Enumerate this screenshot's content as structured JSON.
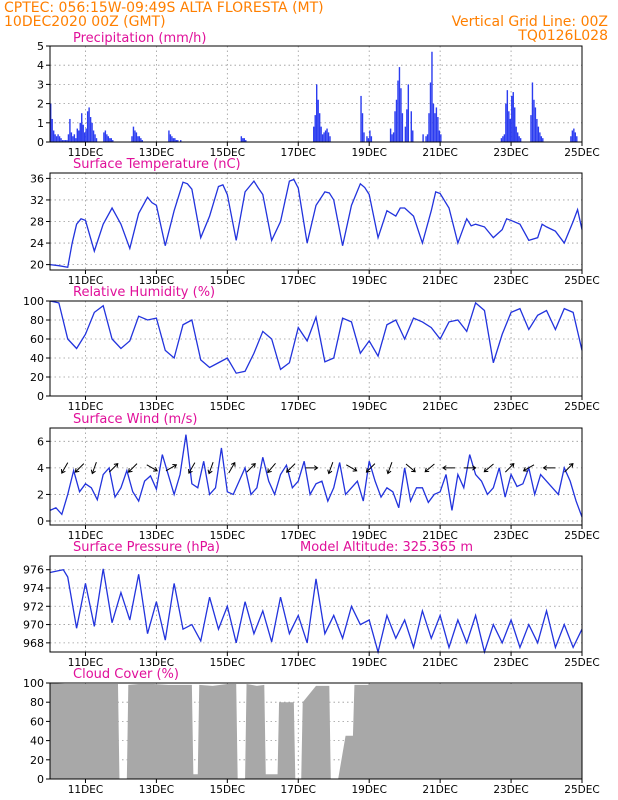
{
  "header": {
    "line1_left": "CPTEC:   056:15W-09:49S   ALTA FLORESTA (MT)",
    "line2_left": "10DEC2020 00Z (GMT)",
    "line1_right": "Vertical Grid Line: 00Z",
    "line2_right": "TQ0126L028",
    "color": "#ff7f00"
  },
  "colors": {
    "title": "#e0109a",
    "line": "#2233dd",
    "bar": "#2b3cf0",
    "cloud": "#a8a8a8"
  },
  "x_tick_labels": [
    "11DEC",
    "13DEC",
    "15DEC",
    "17DEC",
    "19DEC",
    "21DEC",
    "23DEC",
    "25DEC"
  ],
  "panels": {
    "precip": {
      "title": "Precipitation (mm/h)"
    },
    "temp": {
      "title": "Surface Temperature (nC)"
    },
    "rh": {
      "title": "Relative Humidity (%)"
    },
    "wind": {
      "title": "Surface Wind (m/s)"
    },
    "press": {
      "title": "Surface Pressure (hPa)",
      "extra": "Model Altitude: 325.365 m"
    },
    "cloud": {
      "title": "Cloud Cover (%)"
    }
  },
  "chart_data": [
    {
      "id": "precip",
      "type": "bar",
      "title": "Precipitation (mm/h)",
      "xlim": [
        0,
        360
      ],
      "ylim": [
        0,
        5
      ],
      "yticks": [
        0,
        1,
        2,
        3,
        4,
        5
      ],
      "xgrid": [
        24,
        72,
        120,
        168,
        216,
        264,
        312,
        360
      ],
      "grid": true,
      "vgrid": true,
      "x": [
        0,
        1,
        2,
        3,
        4,
        5,
        6,
        7,
        8,
        9,
        10,
        11,
        12,
        13,
        14,
        15,
        16,
        17,
        18,
        19,
        20,
        21,
        22,
        23,
        24,
        25,
        26,
        27,
        28,
        29,
        30,
        31,
        36,
        37,
        38,
        39,
        40,
        41,
        42,
        55,
        56,
        57,
        58,
        59,
        60,
        61,
        62,
        80,
        81,
        82,
        83,
        84,
        85,
        86,
        88,
        129,
        130,
        131,
        132,
        178,
        179,
        180,
        181,
        182,
        183,
        184,
        185,
        186,
        187,
        188,
        189,
        210,
        211,
        212,
        214,
        215,
        216,
        217,
        230,
        231,
        232,
        233,
        234,
        235,
        236,
        237,
        238,
        240,
        241,
        242,
        244,
        245,
        252,
        254,
        255,
        256,
        257,
        258,
        259,
        260,
        261,
        262,
        263,
        264,
        305,
        306,
        307,
        308,
        309,
        310,
        311,
        312,
        313,
        314,
        315,
        316,
        317,
        318,
        325,
        326,
        327,
        328,
        329,
        330,
        331,
        332,
        333,
        352,
        353,
        354,
        355,
        356
      ],
      "values": [
        2.0,
        1.2,
        0.6,
        0.4,
        0.3,
        0.4,
        0.3,
        0.2,
        0.1,
        0.1,
        0.1,
        0.1,
        0.4,
        1.2,
        0.5,
        0.3,
        0.4,
        0.2,
        0.7,
        0.6,
        1.0,
        1.5,
        0.9,
        0.5,
        0.7,
        1.6,
        1.8,
        1.3,
        1.0,
        0.6,
        0.4,
        0.2,
        0.5,
        0.6,
        0.4,
        0.3,
        0.2,
        0.2,
        0.1,
        0.3,
        0.8,
        0.6,
        0.5,
        0.3,
        0.3,
        0.2,
        0.1,
        0.6,
        0.4,
        0.3,
        0.2,
        0.2,
        0.1,
        0.1,
        0.1,
        0.3,
        0.2,
        0.2,
        0.1,
        0.8,
        1.4,
        3.0,
        2.2,
        1.5,
        0.8,
        0.4,
        0.5,
        0.6,
        0.7,
        0.5,
        0.3,
        2.4,
        1.5,
        0.5,
        0.3,
        0.2,
        0.6,
        0.3,
        0.7,
        0.4,
        0.5,
        1.6,
        2.2,
        3.2,
        3.9,
        2.8,
        1.5,
        0.8,
        1.7,
        3.0,
        1.6,
        0.6,
        0.4,
        0.3,
        0.4,
        1.5,
        3.1,
        4.7,
        2.0,
        1.5,
        1.8,
        1.3,
        0.6,
        0.4,
        0.2,
        0.3,
        0.4,
        2.0,
        2.7,
        1.6,
        1.2,
        2.4,
        2.6,
        1.8,
        0.8,
        0.5,
        0.3,
        0.2,
        1.4,
        3.1,
        2.2,
        1.8,
        1.2,
        0.8,
        0.5,
        0.3,
        0.2,
        0.3,
        0.6,
        0.7,
        0.5,
        0.3
      ]
    },
    {
      "id": "temp",
      "type": "line",
      "title": "Surface Temperature (nC)",
      "xlim": [
        0,
        360
      ],
      "ylim": [
        19,
        37
      ],
      "yticks": [
        20,
        24,
        28,
        32,
        36
      ],
      "xgrid": [
        24,
        72,
        120,
        168,
        216,
        264,
        312,
        360
      ],
      "grid": true,
      "vgrid": true,
      "x": [
        0,
        6,
        12,
        15,
        18,
        21,
        24,
        30,
        36,
        42,
        45,
        48,
        54,
        60,
        66,
        69,
        72,
        78,
        84,
        90,
        93,
        96,
        102,
        108,
        114,
        117,
        120,
        126,
        132,
        138,
        141,
        144,
        150,
        156,
        162,
        165,
        168,
        174,
        180,
        186,
        189,
        192,
        198,
        204,
        210,
        213,
        216,
        222,
        228,
        234,
        237,
        240,
        246,
        252,
        258,
        261,
        264,
        270,
        276,
        282,
        285,
        288,
        294,
        300,
        306,
        309,
        312,
        318,
        324,
        330,
        333,
        336,
        342,
        348,
        354,
        357,
        360
      ],
      "values": [
        20,
        19.8,
        19.5,
        24,
        27.5,
        28.5,
        28.2,
        22.5,
        27.5,
        30.5,
        29,
        27.5,
        23,
        29.5,
        32.5,
        31.5,
        31,
        23.5,
        30,
        35.3,
        35,
        34,
        25,
        29,
        34.5,
        34.8,
        33,
        24.5,
        33.5,
        35.5,
        34.2,
        33,
        24.5,
        28,
        35.5,
        35.8,
        34.2,
        24,
        31,
        33.5,
        33.3,
        32,
        23.5,
        31,
        35,
        34.3,
        33,
        25,
        30,
        29,
        30.5,
        30.5,
        29,
        24,
        30,
        33.5,
        33.2,
        30.5,
        24,
        28.5,
        27.2,
        27.5,
        27,
        25,
        26.5,
        28.5,
        28.2,
        27.5,
        24.5,
        25,
        27.5,
        27,
        26.2,
        24,
        28,
        30.2,
        26.5
      ]
    },
    {
      "id": "rh",
      "type": "line",
      "title": "Relative Humidity (%)",
      "xlim": [
        0,
        360
      ],
      "ylim": [
        0,
        100
      ],
      "yticks": [
        0,
        20,
        40,
        60,
        80,
        100
      ],
      "xgrid": [
        24,
        72,
        120,
        168,
        216,
        264,
        312,
        360
      ],
      "grid": true,
      "vgrid": true,
      "x": [
        0,
        6,
        12,
        18,
        24,
        30,
        36,
        42,
        48,
        54,
        60,
        66,
        72,
        78,
        84,
        90,
        96,
        102,
        108,
        114,
        120,
        126,
        132,
        138,
        144,
        150,
        156,
        162,
        168,
        174,
        180,
        186,
        192,
        198,
        204,
        210,
        216,
        222,
        228,
        234,
        240,
        246,
        252,
        258,
        264,
        270,
        276,
        282,
        288,
        294,
        300,
        306,
        312,
        318,
        324,
        330,
        336,
        342,
        348,
        354,
        360
      ],
      "values": [
        100,
        98,
        60,
        50,
        65,
        88,
        95,
        60,
        50,
        58,
        84,
        80,
        82,
        48,
        40,
        75,
        80,
        38,
        30,
        35,
        40,
        24,
        26,
        45,
        68,
        60,
        28,
        35,
        72,
        58,
        83,
        36,
        40,
        82,
        78,
        45,
        58,
        42,
        75,
        80,
        60,
        82,
        78,
        72,
        60,
        78,
        80,
        68,
        98,
        90,
        35,
        65,
        88,
        92,
        70,
        85,
        90,
        70,
        92,
        88,
        48
      ]
    },
    {
      "id": "wind",
      "type": "line",
      "title": "Surface Wind (m/s)",
      "xlim": [
        0,
        360
      ],
      "ylim": [
        -0.3,
        7
      ],
      "yticks": [
        0,
        2,
        4,
        6
      ],
      "xgrid": [
        24,
        72,
        120,
        168,
        216,
        264,
        312,
        360
      ],
      "grid": true,
      "vgrid": true,
      "x": [
        0,
        4,
        8,
        12,
        16,
        20,
        24,
        28,
        32,
        36,
        40,
        44,
        48,
        52,
        56,
        60,
        64,
        68,
        72,
        76,
        80,
        84,
        88,
        92,
        96,
        100,
        104,
        108,
        112,
        116,
        120,
        124,
        128,
        132,
        136,
        140,
        144,
        148,
        152,
        156,
        160,
        164,
        168,
        172,
        176,
        180,
        184,
        188,
        192,
        196,
        200,
        204,
        208,
        212,
        216,
        220,
        224,
        228,
        232,
        236,
        240,
        244,
        248,
        252,
        256,
        260,
        264,
        268,
        272,
        276,
        280,
        284,
        288,
        292,
        296,
        300,
        304,
        308,
        312,
        316,
        320,
        324,
        328,
        332,
        336,
        340,
        344,
        348,
        352,
        356,
        360
      ],
      "values": [
        0.8,
        1.0,
        0.5,
        2.0,
        3.8,
        2.2,
        2.8,
        2.5,
        1.6,
        3.5,
        4.0,
        1.8,
        2.5,
        3.8,
        2.2,
        1.5,
        3.0,
        3.4,
        2.4,
        5.0,
        3.5,
        2.0,
        3.5,
        6.5,
        2.8,
        2.5,
        4.5,
        2.0,
        2.5,
        5.5,
        2.2,
        2.0,
        3.0,
        4.0,
        2.0,
        2.5,
        4.8,
        3.0,
        2.0,
        3.5,
        4.2,
        2.5,
        3.0,
        4.5,
        2.0,
        2.8,
        3.0,
        1.5,
        2.5,
        4.4,
        2.0,
        2.5,
        3.0,
        1.5,
        4.5,
        3.0,
        1.8,
        2.5,
        2.2,
        1.0,
        4.0,
        1.5,
        2.5,
        2.5,
        1.4,
        2.0,
        2.2,
        3.5,
        0.8,
        3.5,
        2.5,
        5.0,
        3.5,
        3.0,
        2.0,
        2.5,
        4.0,
        1.8,
        3.5,
        2.6,
        2.8,
        4.0,
        2.0,
        3.5,
        3.0,
        2.5,
        2.0,
        4.0,
        3.0,
        1.5,
        0.3
      ],
      "arrows": {
        "x": [
          10,
          20,
          30,
          43,
          56,
          69,
          82,
          96,
          109,
          123,
          136,
          150,
          163,
          177,
          190,
          204,
          217,
          230,
          244,
          257,
          270,
          284,
          297,
          311,
          324,
          338,
          351
        ],
        "dir_deg": [
          210,
          225,
          200,
          45,
          225,
          120,
          60,
          210,
          200,
          30,
          45,
          220,
          225,
          90,
          200,
          120,
          225,
          200,
          130,
          230,
          270,
          90,
          230,
          45,
          240,
          270,
          45
        ]
      }
    },
    {
      "id": "press",
      "type": "line",
      "title": "Surface Pressure (hPa)",
      "xlim": [
        0,
        360
      ],
      "ylim": [
        967,
        977.5
      ],
      "yticks": [
        968,
        970,
        972,
        974,
        976
      ],
      "xgrid": [
        24,
        72,
        120,
        168,
        216,
        264,
        312,
        360
      ],
      "grid": true,
      "vgrid": true,
      "x": [
        0,
        6,
        9,
        12,
        18,
        24,
        30,
        36,
        42,
        48,
        54,
        60,
        66,
        72,
        78,
        84,
        90,
        96,
        102,
        108,
        114,
        120,
        126,
        132,
        138,
        144,
        150,
        156,
        162,
        168,
        174,
        180,
        186,
        192,
        198,
        204,
        210,
        216,
        222,
        228,
        234,
        240,
        246,
        252,
        258,
        264,
        270,
        276,
        282,
        288,
        294,
        300,
        306,
        312,
        318,
        324,
        330,
        336,
        342,
        348,
        354,
        360
      ],
      "values": [
        975.7,
        975.9,
        976.0,
        975.2,
        969.6,
        974.5,
        969.8,
        976.1,
        970.2,
        973.5,
        970.5,
        975.5,
        969.0,
        972.5,
        968.3,
        974.5,
        969.5,
        970.0,
        968.2,
        973.0,
        969.5,
        972.0,
        968.0,
        972.5,
        969.0,
        971.5,
        968.1,
        973.0,
        969.0,
        971.0,
        968.0,
        975.0,
        969.0,
        971.0,
        968.5,
        972.0,
        970.0,
        970.5,
        967.0,
        971.0,
        968.5,
        970.5,
        967.5,
        971.5,
        968.5,
        971.0,
        967.5,
        970.5,
        968.0,
        971.0,
        967.0,
        970.0,
        968.0,
        970.5,
        967.5,
        970.0,
        968.0,
        971.5,
        967.5,
        970.0,
        967.5,
        969.5
      ]
    },
    {
      "id": "cloud",
      "type": "area",
      "title": "Cloud Cover (%)",
      "xlim": [
        0,
        360
      ],
      "ylim": [
        0,
        100
      ],
      "yticks": [
        0,
        20,
        40,
        60,
        80,
        100
      ],
      "xgrid": [
        24,
        72,
        120,
        168,
        216,
        264,
        312,
        360
      ],
      "grid": true,
      "vgrid": true,
      "x": [
        0,
        10,
        20,
        30,
        40,
        46,
        47,
        52,
        53,
        60,
        70,
        80,
        90,
        96,
        97,
        100,
        101,
        110,
        120,
        126,
        127,
        132,
        133,
        140,
        145,
        146,
        154,
        155,
        165,
        166,
        170,
        171,
        180,
        189,
        190,
        195,
        200,
        205,
        206,
        215,
        216,
        230,
        250,
        270,
        290,
        310,
        330,
        350,
        360
      ],
      "values": [
        100,
        99,
        99,
        99,
        99,
        99,
        0,
        0,
        98,
        99,
        99,
        98,
        98,
        98,
        5,
        5,
        98,
        97,
        99,
        99,
        0,
        0,
        99,
        97,
        98,
        5,
        5,
        80,
        80,
        0,
        0,
        80,
        97,
        97,
        0,
        0,
        45,
        45,
        98,
        98,
        99,
        99,
        99,
        99,
        99,
        99,
        99,
        99,
        99
      ]
    }
  ]
}
